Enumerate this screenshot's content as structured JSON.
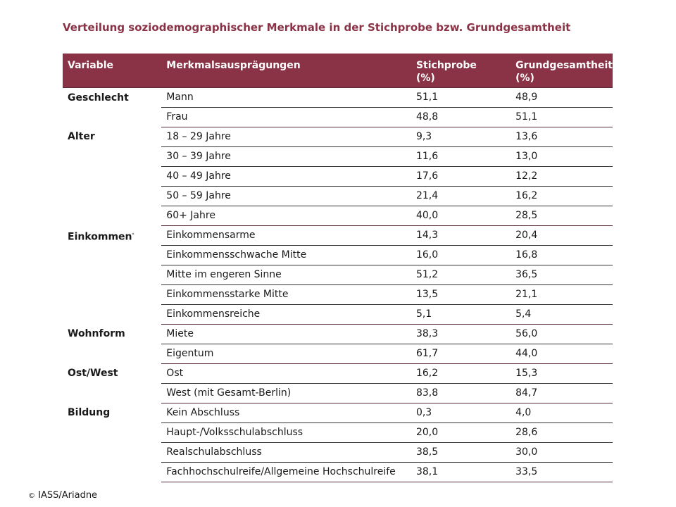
{
  "title": "Verteilung soziodemographischer Merkmale in der Stichprobe bzw. Grundgesamtheit",
  "header": {
    "variable": "Variable",
    "merkmal": "Merkmalsausprägungen",
    "stichprobe": "Stichprobe",
    "stichprobe_unit": "(%)",
    "grund": "Grundgesamtheit",
    "grund_unit": "(%)"
  },
  "groups": [
    {
      "variable": "Geschlecht",
      "mark": "",
      "rows": [
        {
          "label": "Mann",
          "stichprobe": "51,1",
          "grund": "48,9"
        },
        {
          "label": "Frau",
          "stichprobe": "48,8",
          "grund": "51,1"
        }
      ]
    },
    {
      "variable": "Alter",
      "mark": "",
      "rows": [
        {
          "label": "18 – 29 Jahre",
          "stichprobe": "9,3",
          "grund": "13,6"
        },
        {
          "label": "30 – 39 Jahre",
          "stichprobe": "11,6",
          "grund": "13,0"
        },
        {
          "label": "40 – 49 Jahre",
          "stichprobe": "17,6",
          "grund": "12,2"
        },
        {
          "label": "50 – 59 Jahre",
          "stichprobe": "21,4",
          "grund": "16,2"
        },
        {
          "label": "60+ Jahre",
          "stichprobe": "40,0",
          "grund": "28,5"
        }
      ]
    },
    {
      "variable": "Einkommen",
      "mark": "*",
      "rows": [
        {
          "label": "Einkommensarme",
          "stichprobe": "14,3",
          "grund": "20,4"
        },
        {
          "label": "Einkommensschwache Mitte",
          "stichprobe": "16,0",
          "grund": "16,8"
        },
        {
          "label": "Mitte im engeren Sinne",
          "stichprobe": "51,2",
          "grund": "36,5"
        },
        {
          "label": "Einkommensstarke Mitte",
          "stichprobe": "13,5",
          "grund": "21,1"
        },
        {
          "label": "Einkommensreiche",
          "stichprobe": "5,1",
          "grund": "5,4"
        }
      ]
    },
    {
      "variable": "Wohnform",
      "mark": "",
      "rows": [
        {
          "label": "Miete",
          "stichprobe": "38,3",
          "grund": "56,0"
        },
        {
          "label": "Eigentum",
          "stichprobe": "61,7",
          "grund": "44,0"
        }
      ]
    },
    {
      "variable": "Ost/West",
      "mark": "",
      "rows": [
        {
          "label": "Ost",
          "stichprobe": "16,2",
          "grund": "15,3"
        },
        {
          "label": "West (mit Gesamt-Berlin)",
          "stichprobe": "83,8",
          "grund": "84,7"
        }
      ]
    },
    {
      "variable": "Bildung",
      "mark": "",
      "rows": [
        {
          "label": "Kein Abschluss",
          "stichprobe": "0,3",
          "grund": "4,0"
        },
        {
          "label": "Haupt-/Volksschulabschluss",
          "stichprobe": "20,0",
          "grund": "28,6"
        },
        {
          "label": "Realschulabschluss",
          "stichprobe": "38,5",
          "grund": "30,0"
        },
        {
          "label": "Fachhochschulreife/Allgemeine Hochschulreife",
          "stichprobe": "38,1",
          "grund": "33,5"
        }
      ]
    }
  ],
  "footer": {
    "copyright": "©",
    "source": "IASS/Ariadne"
  },
  "colors": {
    "accent": "#8b3346"
  }
}
